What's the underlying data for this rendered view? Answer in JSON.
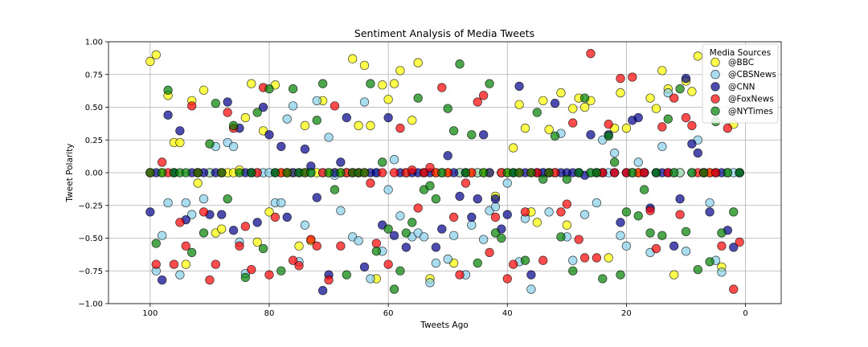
{
  "chart_data": {
    "type": "scatter",
    "title": "Sentiment Analysis of Media Tweets",
    "xlabel": "Tweets Ago",
    "ylabel": "Tweet Polarity",
    "xlim": [
      107,
      -6
    ],
    "ylim": [
      -1.0,
      1.0
    ],
    "x_ticks": [
      100,
      80,
      60,
      40,
      20,
      0
    ],
    "y_ticks": [
      1.0,
      0.75,
      0.5,
      0.25,
      0.0,
      -0.25,
      -0.5,
      -0.75,
      -1.0
    ],
    "x_tick_labels": [
      "100",
      "80",
      "60",
      "40",
      "20",
      "0"
    ],
    "y_tick_labels": [
      "1.00",
      "0.75",
      "0.50",
      "0.25",
      "0.00",
      "−0.25",
      "−0.50",
      "−0.75",
      "−1.00"
    ],
    "grid": true,
    "legend": {
      "title": "Media Sources",
      "placement": "top-right"
    },
    "series": [
      {
        "name": "@BBC",
        "color": "#ffff00",
        "x": [
          100,
          99,
          98,
          97,
          96,
          95,
          94,
          93,
          92,
          91,
          90,
          89,
          88,
          87,
          86,
          85,
          84,
          83,
          82,
          81,
          80,
          79,
          78,
          77,
          76,
          75,
          74,
          73,
          72,
          71,
          70,
          69,
          68,
          67,
          66,
          65,
          64,
          63,
          62,
          61,
          60,
          59,
          58,
          57,
          56,
          55,
          54,
          53,
          52,
          51,
          50,
          49,
          48,
          47,
          46,
          45,
          44,
          43,
          42,
          41,
          40,
          39,
          38,
          37,
          36,
          35,
          34,
          33,
          32,
          31,
          30,
          29,
          28,
          27,
          26,
          25,
          24,
          23,
          22,
          21,
          20,
          19,
          18,
          17,
          16,
          15,
          14,
          13,
          12,
          11,
          10,
          9,
          8,
          7,
          6,
          5,
          4,
          3,
          2,
          1
        ],
        "y": [
          0.85,
          0.9,
          0.0,
          0.59,
          0.23,
          0.23,
          -0.7,
          0.55,
          -0.08,
          0.63,
          0.0,
          -0.46,
          -0.43,
          0.0,
          0.0,
          0.02,
          0.42,
          0.68,
          -0.53,
          0.32,
          -0.3,
          0.67,
          0.0,
          0.0,
          0.0,
          -0.56,
          0.36,
          -0.52,
          0.0,
          0.55,
          0.0,
          0.0,
          0.0,
          0.0,
          0.87,
          0.36,
          0.82,
          0.36,
          -0.81,
          0.67,
          0.56,
          0.68,
          0.78,
          0.0,
          0.4,
          0.84,
          0.0,
          -0.81,
          0.0,
          0.0,
          0.0,
          -0.69,
          0.0,
          0.0,
          0.0,
          0.0,
          0.0,
          0.0,
          -0.18,
          0.0,
          0.0,
          0.19,
          0.52,
          0.34,
          -0.3,
          -0.38,
          0.55,
          0.33,
          0.0,
          0.61,
          -0.4,
          0.49,
          0.57,
          0.5,
          0.55,
          0.0,
          0.0,
          -0.65,
          0.34,
          0.61,
          0.34,
          0.0,
          0.0,
          0.0,
          0.57,
          0.49,
          0.78,
          0.64,
          -0.78,
          0.0,
          0.7,
          0.62,
          0.89,
          0.0,
          0.0,
          0.0,
          -0.72,
          0.0,
          0.37,
          0.0
        ]
      },
      {
        "name": "@CBSNews",
        "color": "#87ceeb",
        "x": [
          100,
          99,
          98,
          97,
          96,
          95,
          94,
          93,
          92,
          91,
          90,
          89,
          88,
          87,
          86,
          85,
          84,
          83,
          82,
          81,
          80,
          79,
          78,
          77,
          76,
          75,
          74,
          73,
          72,
          71,
          70,
          69,
          68,
          67,
          66,
          65,
          64,
          63,
          62,
          61,
          60,
          59,
          58,
          57,
          56,
          55,
          54,
          53,
          52,
          51,
          50,
          49,
          48,
          47,
          46,
          45,
          44,
          43,
          42,
          41,
          40,
          39,
          38,
          37,
          36,
          35,
          34,
          33,
          32,
          31,
          30,
          29,
          28,
          27,
          26,
          25,
          24,
          23,
          22,
          21,
          20,
          19,
          18,
          17,
          16,
          15,
          14,
          13,
          12,
          11,
          10,
          9,
          8,
          7,
          6,
          5,
          4,
          3,
          2,
          1
        ],
        "y": [
          0.0,
          -0.75,
          -0.48,
          -0.23,
          0.0,
          -0.78,
          -0.23,
          -0.32,
          0.0,
          -0.2,
          0.0,
          0.2,
          0.0,
          0.23,
          0.2,
          -0.53,
          -0.77,
          0.0,
          0.0,
          0.0,
          0.0,
          -0.23,
          -0.23,
          0.41,
          0.51,
          -0.68,
          -0.4,
          0.0,
          0.55,
          0.0,
          0.27,
          -0.02,
          -0.29,
          0.0,
          -0.49,
          -0.52,
          0.54,
          -0.81,
          0.0,
          -0.6,
          -0.13,
          0.1,
          -0.33,
          0.0,
          -0.49,
          -0.46,
          -0.49,
          -0.84,
          -0.69,
          0.0,
          -0.66,
          -0.48,
          0.0,
          -0.78,
          -0.4,
          0.0,
          -0.51,
          -0.29,
          -0.26,
          0.0,
          -0.08,
          0.0,
          -0.68,
          -0.35,
          -0.89,
          0.0,
          0.0,
          -0.3,
          0.0,
          0.3,
          -0.49,
          -0.67,
          0.0,
          -0.32,
          0.0,
          -0.23,
          0.25,
          0.0,
          0.15,
          -0.48,
          -0.56,
          0.0,
          0.08,
          0.0,
          -0.61,
          0.0,
          0.2,
          0.61,
          0.0,
          0.0,
          -0.6,
          0.0,
          0.25,
          0.0,
          -0.23,
          -0.67,
          -0.76,
          0.0,
          0.0,
          0.0
        ]
      },
      {
        "name": "@CNN",
        "color": "#00008b",
        "x": [
          100,
          99,
          98,
          97,
          96,
          95,
          94,
          93,
          92,
          91,
          90,
          89,
          88,
          87,
          86,
          85,
          84,
          83,
          82,
          81,
          80,
          79,
          78,
          77,
          76,
          75,
          74,
          73,
          72,
          71,
          70,
          69,
          68,
          67,
          66,
          65,
          64,
          63,
          62,
          61,
          60,
          59,
          58,
          57,
          56,
          55,
          54,
          53,
          52,
          51,
          50,
          49,
          48,
          47,
          46,
          45,
          44,
          43,
          42,
          41,
          40,
          39,
          38,
          37,
          36,
          35,
          34,
          33,
          32,
          31,
          30,
          29,
          28,
          27,
          26,
          25,
          24,
          23,
          22,
          21,
          20,
          19,
          18,
          17,
          16,
          15,
          14,
          13,
          12,
          11,
          10,
          9,
          8,
          7,
          6,
          5,
          4,
          3,
          2,
          1
        ],
        "y": [
          -0.3,
          0.0,
          -0.82,
          0.44,
          0.0,
          0.32,
          -0.36,
          0.0,
          0.0,
          0.0,
          -0.32,
          0.0,
          -0.32,
          0.54,
          -0.44,
          0.34,
          0.0,
          0.0,
          -0.38,
          0.5,
          0.29,
          0.0,
          0.2,
          -0.34,
          0.0,
          0.0,
          0.18,
          0.05,
          -0.19,
          -0.9,
          -0.78,
          0.0,
          0.08,
          0.42,
          0.0,
          0.0,
          -0.72,
          0.0,
          0.0,
          -0.4,
          0.42,
          -0.48,
          0.0,
          -0.57,
          0.0,
          0.0,
          0.0,
          0.0,
          -0.57,
          -0.43,
          0.13,
          0.0,
          -0.18,
          0.0,
          -0.34,
          -0.2,
          0.29,
          0.0,
          -0.2,
          -0.43,
          -0.32,
          0.0,
          0.66,
          0.0,
          -0.78,
          0.0,
          0.0,
          0.0,
          0.53,
          0.0,
          0.0,
          0.0,
          0.0,
          -0.02,
          0.29,
          0.0,
          0.0,
          0.29,
          0.0,
          -0.38,
          0.0,
          0.4,
          0.42,
          0.0,
          -0.27,
          0.0,
          0.0,
          0.0,
          -0.56,
          -0.2,
          0.72,
          0.22,
          0.15,
          0.0,
          -0.3,
          0.0,
          0.0,
          -0.44,
          -0.57,
          0.0
        ]
      },
      {
        "name": "@FoxNews",
        "color": "#ff0000",
        "x": [
          100,
          99,
          98,
          97,
          96,
          95,
          94,
          93,
          92,
          91,
          90,
          89,
          88,
          87,
          86,
          85,
          84,
          83,
          82,
          81,
          80,
          79,
          78,
          77,
          76,
          75,
          74,
          73,
          72,
          71,
          70,
          69,
          68,
          67,
          66,
          65,
          64,
          63,
          62,
          61,
          60,
          59,
          58,
          57,
          56,
          55,
          54,
          53,
          52,
          51,
          50,
          49,
          48,
          47,
          46,
          45,
          44,
          43,
          42,
          41,
          40,
          39,
          38,
          37,
          36,
          35,
          34,
          33,
          32,
          31,
          30,
          29,
          28,
          27,
          26,
          25,
          24,
          23,
          22,
          21,
          20,
          19,
          18,
          17,
          16,
          15,
          14,
          13,
          12,
          11,
          10,
          9,
          8,
          7,
          6,
          5,
          4,
          3,
          2,
          1
        ],
        "y": [
          0.0,
          -0.7,
          0.08,
          0.0,
          -0.7,
          -0.38,
          -0.56,
          0.51,
          0.0,
          -0.3,
          -0.82,
          -0.7,
          0.0,
          0.46,
          0.34,
          -0.56,
          -0.41,
          -0.74,
          0.0,
          0.65,
          -0.78,
          -0.34,
          0.0,
          0.0,
          -0.67,
          -0.71,
          0.0,
          -0.51,
          -0.56,
          0.0,
          -0.82,
          0.51,
          -0.56,
          0.0,
          0.0,
          0.0,
          0.0,
          -0.08,
          -0.54,
          0.0,
          -0.7,
          0.0,
          0.34,
          0.0,
          0.02,
          -0.27,
          0.0,
          0.04,
          0.0,
          0.65,
          0.0,
          -0.34,
          -0.78,
          -0.08,
          0.0,
          0.54,
          0.59,
          -0.61,
          -0.34,
          0.0,
          -0.81,
          -0.7,
          0.0,
          -0.3,
          0.0,
          0.0,
          -0.67,
          0.0,
          0.0,
          -0.3,
          -0.24,
          0.38,
          -0.51,
          -0.65,
          0.91,
          -0.65,
          0.0,
          0.37,
          0.0,
          0.72,
          0.0,
          0.73,
          0.0,
          0.0,
          -0.29,
          -0.58,
          0.35,
          0.0,
          0.57,
          -0.32,
          0.42,
          0.36,
          0.0,
          0.0,
          0.0,
          0.0,
          -0.56,
          0.34,
          -0.89,
          -0.53
        ]
      },
      {
        "name": "@NYTimes",
        "color": "#008000",
        "x": [
          100,
          99,
          98,
          97,
          96,
          95,
          94,
          93,
          92,
          91,
          90,
          89,
          88,
          87,
          86,
          85,
          84,
          83,
          82,
          81,
          80,
          79,
          78,
          77,
          76,
          75,
          74,
          73,
          72,
          71,
          70,
          69,
          68,
          67,
          66,
          65,
          64,
          63,
          62,
          61,
          60,
          59,
          58,
          57,
          56,
          55,
          54,
          53,
          52,
          51,
          50,
          49,
          48,
          47,
          46,
          45,
          44,
          43,
          42,
          41,
          40,
          39,
          38,
          37,
          36,
          35,
          34,
          33,
          32,
          31,
          30,
          29,
          28,
          27,
          26,
          25,
          24,
          23,
          22,
          21,
          20,
          19,
          18,
          17,
          16,
          15,
          14,
          13,
          12,
          11,
          10,
          9,
          8,
          7,
          6,
          5,
          4,
          3,
          2,
          1
        ],
        "y": [
          0.0,
          -0.54,
          0.0,
          0.63,
          0.0,
          0.0,
          0.0,
          -0.61,
          0.0,
          -0.46,
          0.22,
          0.53,
          0.0,
          -0.2,
          0.36,
          0.0,
          -0.8,
          0.0,
          0.46,
          -0.58,
          0.64,
          0.0,
          -0.75,
          0.0,
          0.64,
          0.0,
          0.0,
          0.0,
          0.4,
          0.68,
          0.0,
          -0.13,
          0.0,
          -0.78,
          0.0,
          0.0,
          0.0,
          0.68,
          -0.6,
          0.08,
          -0.43,
          -0.89,
          -0.75,
          -0.46,
          -0.38,
          0.57,
          -0.13,
          -0.1,
          -0.2,
          0.0,
          0.49,
          0.32,
          0.83,
          0.0,
          0.29,
          -0.69,
          0.0,
          0.68,
          -0.46,
          -0.5,
          0.0,
          0.0,
          0.0,
          -0.67,
          0.0,
          0.46,
          -0.05,
          0.0,
          0.28,
          -0.49,
          -0.05,
          -0.75,
          0.0,
          0.57,
          0.0,
          0.0,
          -0.81,
          0.28,
          0.08,
          -0.78,
          -0.3,
          0.0,
          -0.33,
          -0.13,
          -0.46,
          0.0,
          -0.48,
          0.41,
          0.0,
          0.64,
          -0.45,
          0.0,
          -0.74,
          0.0,
          -0.68,
          0.39,
          -0.46,
          0.0,
          -0.3,
          0.0
        ]
      }
    ]
  }
}
